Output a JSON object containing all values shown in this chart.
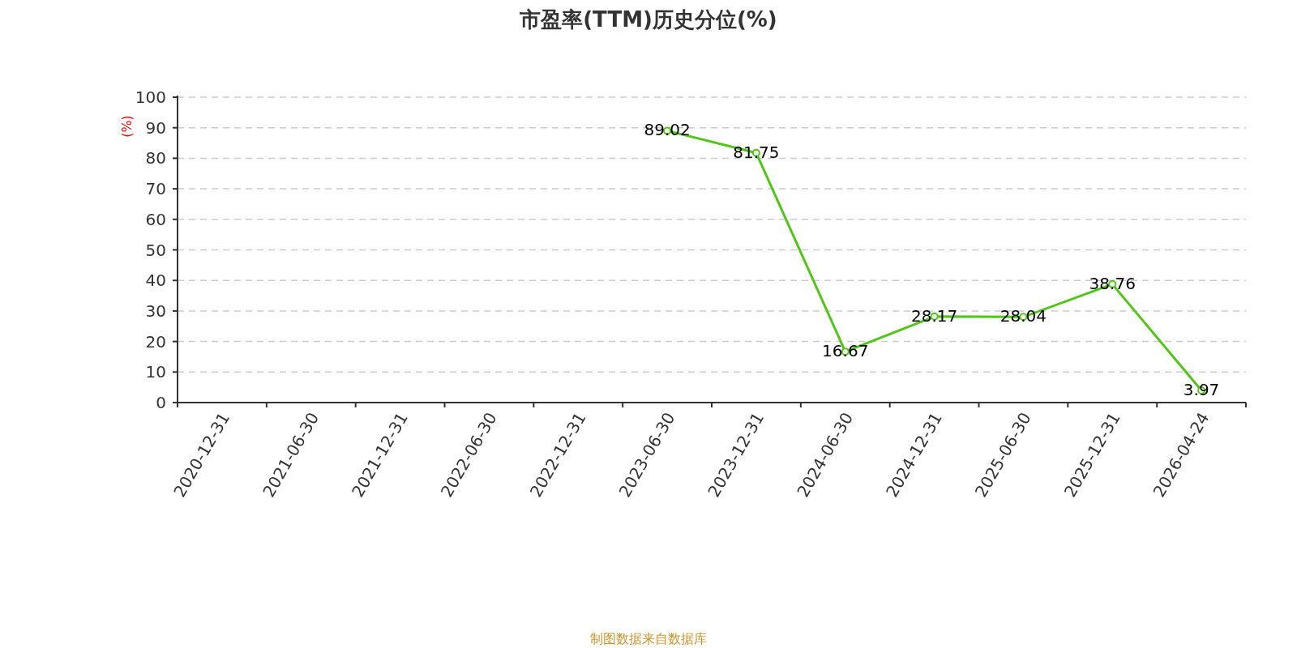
{
  "chart_data": {
    "type": "line",
    "title": "市盈率(TTM)历史分位(%)",
    "ylabel": "(%)",
    "annotations": [
      "制图数据来自数据库"
    ],
    "categories": [
      "2020-12-31",
      "2021-06-30",
      "2021-12-31",
      "2022-06-30",
      "2022-12-31",
      "2023-06-30",
      "2023-12-31",
      "2024-06-30",
      "2024-12-31",
      "2025-06-30",
      "2025-12-31",
      "2026-04-24"
    ],
    "series": [
      {
        "color": "#52c41a",
        "values": [
          null,
          null,
          null,
          null,
          null,
          89.02,
          81.75,
          16.67,
          28.17,
          28.04,
          38.76,
          3.97
        ]
      }
    ],
    "ylim": [
      0,
      100
    ],
    "yticks": [
      0,
      10,
      20,
      30,
      40,
      50,
      60,
      70,
      80,
      90,
      100
    ],
    "grid": "y",
    "marker": "circle",
    "line_style": "solid",
    "data_labels": true
  }
}
